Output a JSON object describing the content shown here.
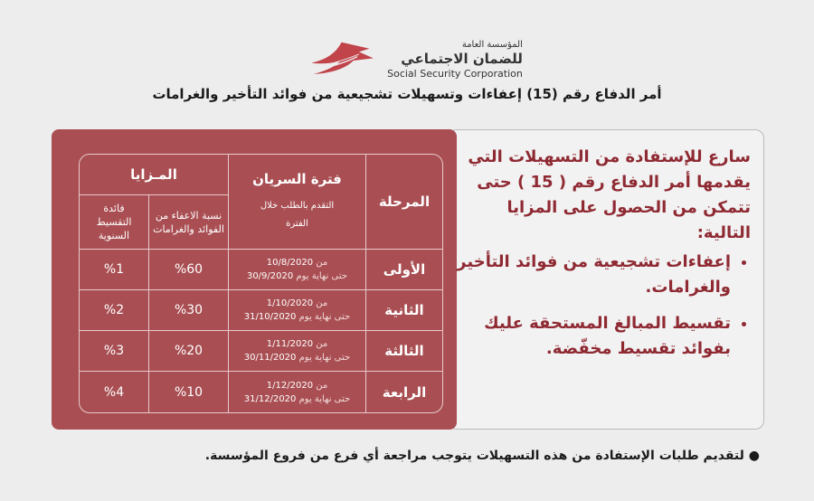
{
  "logo": {
    "line1": "المؤسسة العامة",
    "line2": "للضمان الاجتماعي",
    "english": "Social Security Corporation"
  },
  "title": "أمر الدفاع رقم (15) إعفاءات وتسهيلات تشجيعية من فوائد التأخير والغرامات",
  "table": {
    "headers": {
      "phase": "المرحلة",
      "period": "فترة السريان",
      "period_sub": "التقدم بالطلب خلال الفترة",
      "benefits": "المـزايا",
      "exemption": "نسبة الاعفاء من الفوائد والغرامات",
      "installment": "فائدة التقسيط السنوية"
    },
    "rows": [
      {
        "phase": "الأولى",
        "from_label": "من",
        "from": "10/8/2020",
        "to_label": "حتى نهاية يوم",
        "to": "30/9/2020",
        "exemption": "%60",
        "installment": "%1"
      },
      {
        "phase": "الثانية",
        "from_label": "من",
        "from": "1/10/2020",
        "to_label": "حتى نهاية يوم",
        "to": "31/10/2020",
        "exemption": "%30",
        "installment": "%2"
      },
      {
        "phase": "الثالثة",
        "from_label": "من",
        "from": "1/11/2020",
        "to_label": "حتى نهاية يوم",
        "to": "30/11/2020",
        "exemption": "%20",
        "installment": "%3"
      },
      {
        "phase": "الرابعة",
        "from_label": "من",
        "from": "1/12/2020",
        "to_label": "حتى نهاية يوم",
        "to": "31/12/2020",
        "exemption": "%10",
        "installment": "%4"
      }
    ]
  },
  "panel": {
    "intro": "سارع للإستفادة من التسهيلات التي يقدمها أمر الدفاع رقم ( 15 ) حتى تتمكن من الحصول على المزايا التالية:",
    "bullets": [
      "إعفاءات تشجيعية من فوائد التأخير والغرامات.",
      "تقسيط المبالغ المستحقة عليك بفوائد تقسيط مخفّضة."
    ]
  },
  "footer": "لتقديم طلبات الإستفادة من هذه التسهيلات يتوجب مراجعة أي فرع من فروع المؤسسة.",
  "colors": {
    "panel": "#a94f53",
    "text_accent": "#8f2a33",
    "background": "#eeeded"
  }
}
